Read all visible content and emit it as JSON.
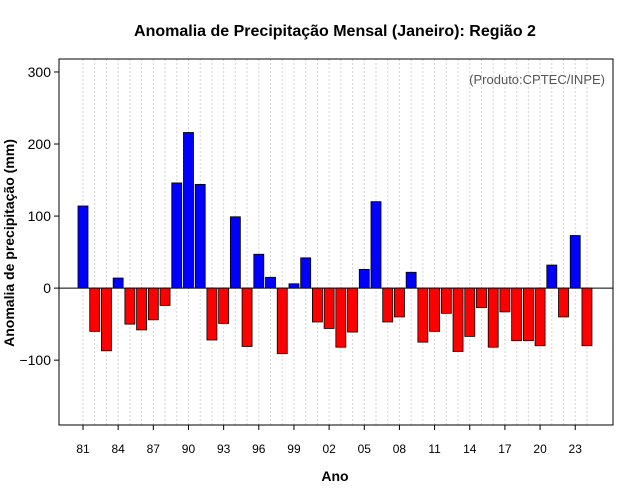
{
  "chart_data": {
    "type": "bar",
    "title": "Anomalia de Precipitação Mensal (Janeiro): Região 2",
    "xlabel": "Ano",
    "ylabel": "Anomalia de precipitação (mm)",
    "source": "(Produto:CPTEC/INPE)",
    "ylim": [
      -190,
      318
    ],
    "yticks": [
      -100,
      0,
      100,
      200,
      300
    ],
    "xtick_labels": [
      "81",
      "84",
      "87",
      "90",
      "93",
      "96",
      "99",
      "02",
      "05",
      "08",
      "11",
      "14",
      "17",
      "20",
      "23"
    ],
    "xtick_every": 3,
    "positive_color": "#0000ff",
    "negative_color": "#ff0000",
    "categories": [
      "1981",
      "1982",
      "1983",
      "1984",
      "1985",
      "1986",
      "1987",
      "1988",
      "1989",
      "1990",
      "1991",
      "1992",
      "1993",
      "1994",
      "1995",
      "1996",
      "1997",
      "1998",
      "1999",
      "2000",
      "2001",
      "2002",
      "2003",
      "2004",
      "2005",
      "2006",
      "2007",
      "2008",
      "2009",
      "2010",
      "2011",
      "2012",
      "2013",
      "2014",
      "2015",
      "2016",
      "2017",
      "2018",
      "2019",
      "2020",
      "2021",
      "2022",
      "2023",
      "2024"
    ],
    "values": [
      114,
      -60,
      -87,
      14,
      -50,
      -58,
      -44,
      -24,
      146,
      216,
      144,
      -72,
      -49,
      99,
      -81,
      47,
      15,
      -91,
      6,
      42,
      -47,
      -56,
      -82,
      -61,
      26,
      120,
      -47,
      -40,
      22,
      -75,
      -60,
      -35,
      -88,
      -67,
      -27,
      -82,
      -33,
      -73,
      -73,
      -80,
      32,
      -40,
      73,
      -80
    ]
  }
}
